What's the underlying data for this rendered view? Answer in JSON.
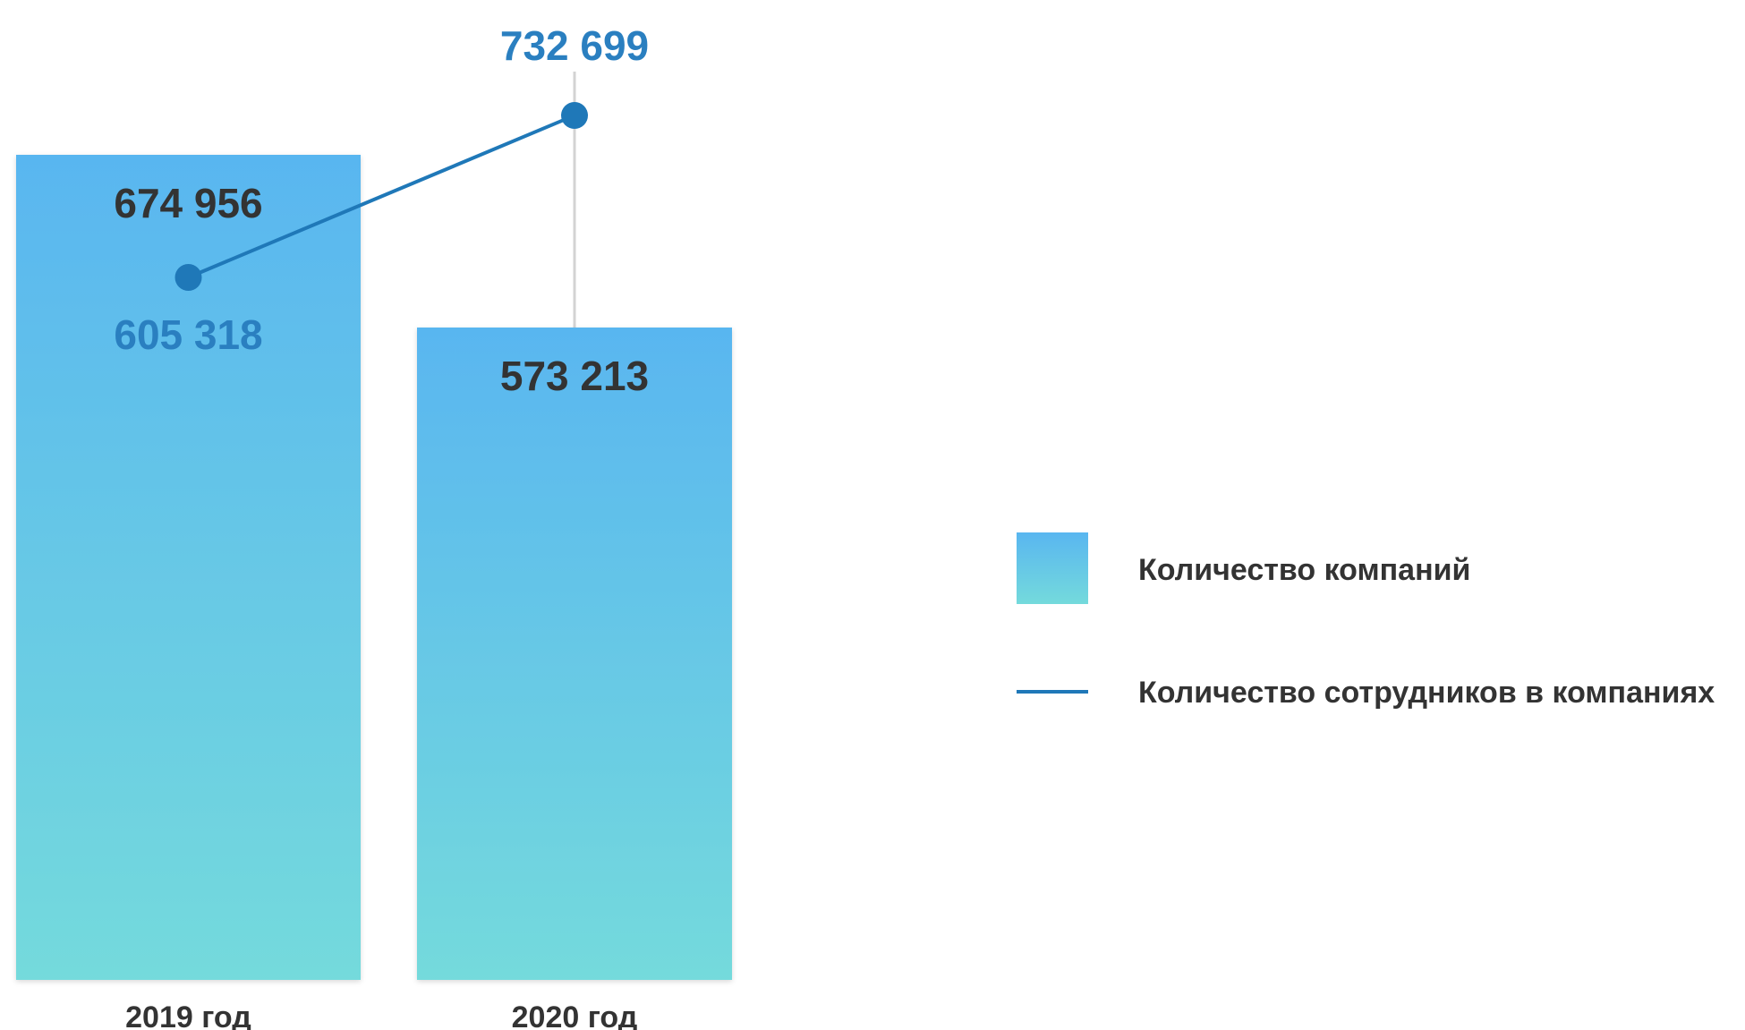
{
  "chart_data": {
    "type": "bar",
    "categories": [
      "2019 год",
      "2020 год"
    ],
    "series": [
      {
        "name": "Количество компаний",
        "type": "bar",
        "values": [
          674956,
          573213
        ],
        "labels": [
          "674 956",
          "573 213"
        ]
      },
      {
        "name": "Количество сотрудников в компаниях",
        "type": "line",
        "values": [
          605318,
          732699
        ],
        "labels": [
          "605 318",
          "732 699"
        ]
      }
    ],
    "title": "",
    "xlabel": "",
    "ylabel": "",
    "legend": "right",
    "grid": false
  },
  "colors": {
    "bar_top": "#59b6f0",
    "bar_bottom": "#74dadc",
    "line": "#1f78b8",
    "bar_label": "#333333",
    "line_label": "#2a7fc0",
    "guide": "#d3d3d3"
  }
}
